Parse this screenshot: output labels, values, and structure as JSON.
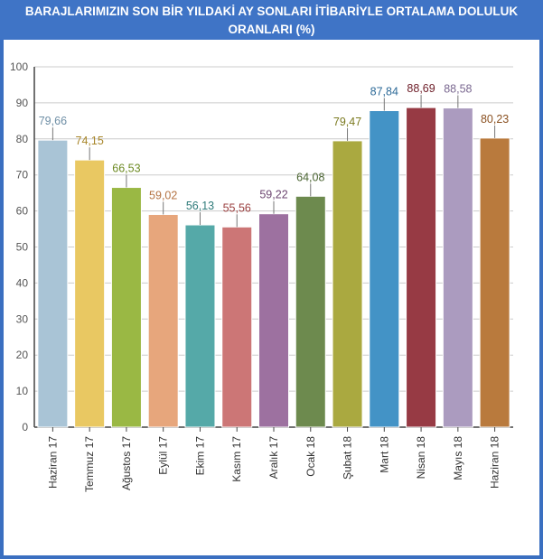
{
  "title": {
    "line1": "BARAJLARIMIZIN SON BİR YILDAKİ AY SONLARI İTİBARİYLE ORTALAMA DOLULUK",
    "line2": "ORANLARI (%)"
  },
  "chart_data": {
    "type": "bar",
    "title": "BARAJLARIMIZIN SON BİR YILDAKİ AY SONLARI İTİBARİYLE ORTALAMA DOLULUK ORANLARI (%)",
    "xlabel": "",
    "ylabel": "",
    "ylim": [
      0,
      100
    ],
    "yticks": [
      0,
      10,
      20,
      30,
      40,
      50,
      60,
      70,
      80,
      90,
      100
    ],
    "grid": true,
    "legend": "none",
    "categories": [
      "Haziran 17",
      "Temmuz 17",
      "Ağustos 17",
      "Eylül 17",
      "Ekim 17",
      "Kasım 17",
      "Aralık 17",
      "Ocak 18",
      "Şubat 18",
      "Mart 18",
      "Nisan 18",
      "Mayıs 18",
      "Haziran 18"
    ],
    "values": [
      79.66,
      74.15,
      66.53,
      59.02,
      56.13,
      55.56,
      59.22,
      64.08,
      79.47,
      87.84,
      88.69,
      88.58,
      80.23
    ],
    "value_labels": [
      "79,66",
      "74,15",
      "66,53",
      "59,02",
      "56,13",
      "55,56",
      "59,22",
      "64,08",
      "79,47",
      "87,84",
      "88,69",
      "88,58",
      "80,23"
    ],
    "colors": [
      "#a9c4d6",
      "#e9c862",
      "#9ab844",
      "#e7a67c",
      "#55a9a8",
      "#cc7676",
      "#9d71a0",
      "#6d8a4e",
      "#aaa940",
      "#4393c6",
      "#973a44",
      "#ab9bbf",
      "#b97a3d"
    ],
    "label_colors": [
      "#6f8fa6",
      "#a8862a",
      "#6d8a23",
      "#b47343",
      "#2f7b7a",
      "#9b4040",
      "#6c4570",
      "#4a6431",
      "#7b7a20",
      "#2d6a98",
      "#6d1d28",
      "#7a6890",
      "#8a5020"
    ]
  }
}
